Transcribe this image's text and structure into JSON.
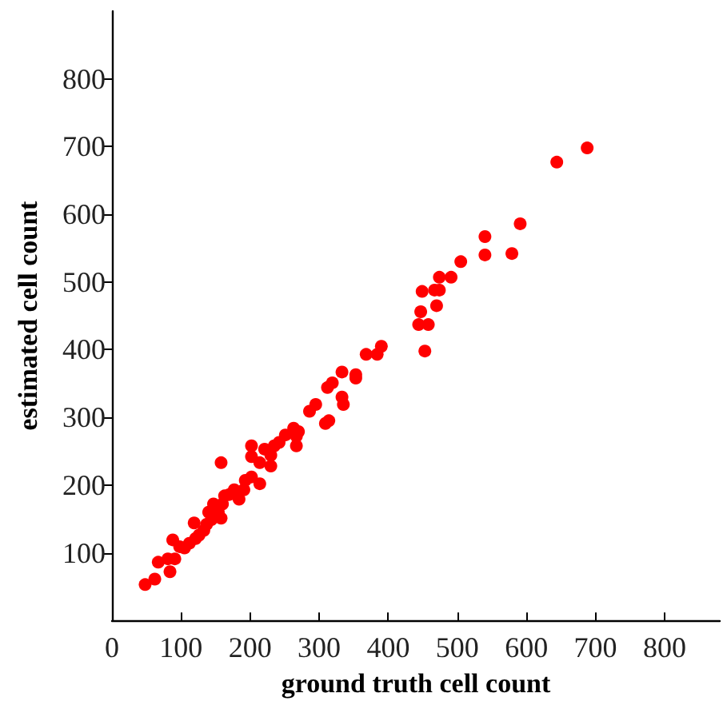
{
  "chart_data": {
    "type": "scatter",
    "xlabel": "ground truth cell count",
    "ylabel": "estimated cell count",
    "series": [
      {
        "color": "#ff0000",
        "x": [
          48,
          62,
          67,
          81,
          84,
          91,
          88,
          98,
          105,
          112,
          121,
          119,
          126,
          133,
          137,
          144,
          140,
          147,
          154,
          158,
          160,
          158,
          163,
          170,
          177,
          184,
          191,
          193,
          202,
          214,
          202,
          202,
          214,
          221,
          230,
          230,
          235,
          242,
          251,
          263,
          267,
          270,
          267,
          286,
          295,
          309,
          314,
          312,
          319,
          333,
          335,
          353,
          333,
          353,
          368,
          384,
          390,
          453,
          444,
          458,
          447,
          470,
          449,
          467,
          474,
          474,
          491,
          505,
          540,
          540,
          579,
          591,
          644,
          688
        ],
        "values": [
          53,
          61,
          86,
          91,
          72,
          91,
          119,
          109,
          107,
          114,
          121,
          144,
          126,
          133,
          142,
          149,
          160,
          172,
          160,
          151,
          172,
          233,
          184,
          186,
          193,
          179,
          193,
          207,
          212,
          202,
          242,
          258,
          233,
          253,
          244,
          228,
          258,
          263,
          274,
          284,
          272,
          279,
          258,
          309,
          319,
          291,
          295,
          344,
          351,
          330,
          319,
          358,
          367,
          363,
          393,
          393,
          405,
          398,
          437,
          437,
          456,
          465,
          486,
          488,
          488,
          507,
          507,
          530,
          540,
          567,
          542,
          586,
          677,
          698
        ]
      }
    ],
    "xlim": [
      0,
      880
    ],
    "ylim": [
      0,
      900
    ],
    "xticks": [
      0,
      100,
      200,
      300,
      400,
      500,
      600,
      700,
      800
    ],
    "yticks": [
      100,
      200,
      300,
      400,
      500,
      600,
      700,
      800
    ],
    "grid": false,
    "marker": "circle"
  }
}
